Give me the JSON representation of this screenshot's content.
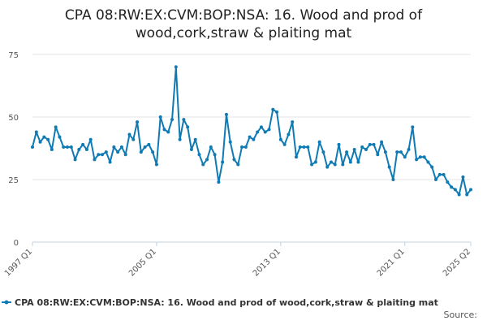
{
  "chart_data": {
    "type": "line",
    "title_line1": "CPA 08:RW:EX:CVM:BOP:NSA: 16. Wood and prod of",
    "title_line2": "wood,cork,straw & plaiting mat",
    "ylim": [
      0,
      75
    ],
    "y_ticks": [
      "0",
      "25",
      "50",
      "75"
    ],
    "y_tick_values": [
      0,
      25,
      50,
      75
    ],
    "x_ticks": [
      "1997 Q1",
      "2005 Q1",
      "2013 Q1",
      "2021 Q1",
      "2025 Q2"
    ],
    "x_tick_indices": [
      0,
      32,
      64,
      96,
      113
    ],
    "grid": true,
    "legend_placement": "bottom",
    "series_color": "#0f7ab3",
    "source_label": "Source:",
    "series": [
      {
        "name": "CPA 08:RW:EX:CVM:BOP:NSA: 16. Wood and prod of wood,cork,straw & plaiting mat",
        "x_start": "1997 Q1",
        "x_end": "2025 Q2",
        "values": [
          38,
          44,
          40,
          42,
          41,
          37,
          46,
          42,
          38,
          38,
          38,
          33,
          37,
          39,
          37,
          41,
          33,
          35,
          35,
          36,
          32,
          38,
          36,
          38,
          35,
          43,
          41,
          48,
          36,
          38,
          39,
          36,
          31,
          50,
          45,
          44,
          49,
          70,
          41,
          49,
          46,
          37,
          41,
          35,
          31,
          33,
          38,
          35,
          24,
          32,
          51,
          40,
          33,
          31,
          38,
          38,
          42,
          41,
          44,
          46,
          44,
          45,
          53,
          52,
          41,
          39,
          43,
          48,
          34,
          38,
          38,
          38,
          31,
          32,
          40,
          36,
          30,
          32,
          31,
          39,
          31,
          36,
          32,
          37,
          32,
          38,
          37,
          39,
          39,
          35,
          40,
          36,
          30,
          25,
          36,
          36,
          34,
          37,
          46,
          33,
          34,
          34,
          32,
          30,
          25,
          27,
          27,
          24,
          22,
          21,
          19,
          26,
          19,
          21
        ]
      }
    ]
  }
}
